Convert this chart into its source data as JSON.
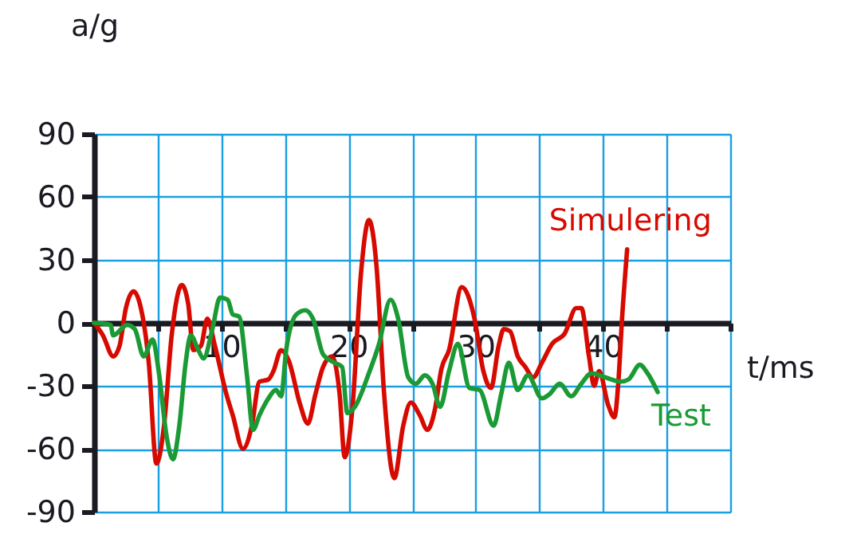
{
  "chart_data": {
    "type": "line",
    "xlabel": "t/ms",
    "ylabel": "a/g",
    "xlim": [
      0,
      50
    ],
    "ylim": [
      -90,
      90
    ],
    "xticks": [
      {
        "value": 0,
        "label": null
      },
      {
        "value": 5,
        "label": null
      },
      10,
      {
        "value": 15,
        "label": null
      },
      20,
      {
        "value": 25,
        "label": null
      },
      30,
      {
        "value": 35,
        "label": null
      },
      40,
      {
        "value": 45,
        "label": null
      },
      {
        "value": 50,
        "label": null
      }
    ],
    "yticks": [
      -90,
      -60,
      -30,
      0,
      30,
      60,
      90
    ],
    "grid": true,
    "line_style": "solid",
    "marker": "none",
    "series": [
      {
        "name": "Simulering",
        "color": "#d60a00",
        "x": [
          0,
          0.7,
          1.5,
          2,
          2.5,
          3.1,
          3.6,
          4.3,
          4.9,
          5.5,
          6.1,
          6.9,
          7.4,
          7.8,
          8.4,
          8.9,
          9.5,
          10.4,
          10.9,
          11.7,
          12.4,
          13,
          13.7,
          14.1,
          14.7,
          15.3,
          16.2,
          16.8,
          17.4,
          18,
          18.7,
          19.3,
          19.7,
          20.3,
          21,
          21.6,
          22.2,
          22.8,
          23.6,
          24.3,
          24.9,
          25.6,
          26.2,
          26.8,
          27.3,
          27.9,
          28.9,
          29.9,
          30.6,
          31.2,
          31.8,
          32.2,
          32.7,
          33.3,
          33.9,
          34.5,
          35.2,
          36,
          37,
          37.9,
          38.3,
          38.9,
          39.3,
          39.7,
          40.4,
          40.9,
          41.2,
          41.5,
          41.9
        ],
        "values": [
          0,
          -6,
          -16,
          -11,
          7,
          15,
          9,
          -19,
          -67,
          -49,
          -6,
          18,
          9,
          -13,
          -11,
          2,
          -11,
          -34,
          -44,
          -60,
          -49,
          -28,
          -27,
          -23,
          -13,
          -18,
          -39,
          -48,
          -34,
          -21,
          -16,
          -34,
          -64,
          -41,
          25,
          49,
          27,
          -34,
          -74,
          -49,
          -38,
          -44,
          -51,
          -41,
          -22,
          -13,
          17,
          2,
          -23,
          -31,
          -11,
          -3,
          -4,
          -16,
          -21,
          -26,
          -19,
          -10,
          -5,
          7,
          7,
          -16,
          -30,
          -23,
          -39,
          -45,
          -29,
          2,
          35
        ]
      },
      {
        "name": "Test",
        "color": "#1a9a35",
        "x": [
          0,
          1.3,
          1.5,
          2.6,
          3.2,
          3.9,
          4.6,
          5.1,
          5.7,
          6.2,
          6.7,
          7.2,
          7.6,
          8.2,
          8.6,
          9.3,
          9.9,
          10.5,
          10.9,
          11.4,
          12,
          12.5,
          13,
          13.7,
          14.3,
          14.7,
          15.1,
          15.9,
          16.6,
          17.2,
          18,
          18.9,
          19.5,
          19.9,
          20.5,
          21.6,
          22.4,
          23.3,
          23.9,
          24.7,
          25.3,
          26,
          26.6,
          27.2,
          27.9,
          28.6,
          29.5,
          30.3,
          31.4,
          32,
          32.6,
          33.3,
          34.1,
          35.2,
          35.8,
          36.6,
          37.5,
          38.3,
          39.1,
          40.2,
          41.4,
          42,
          42.9,
          43.5,
          44.3
        ],
        "values": [
          0,
          -1,
          -6,
          -1,
          -3,
          -16,
          -8,
          -24,
          -54,
          -65,
          -49,
          -19,
          -6,
          -13,
          -17,
          -3,
          12,
          11,
          4,
          3,
          -24,
          -51,
          -44,
          -36,
          -32,
          -35,
          -13,
          4,
          6,
          2,
          -15,
          -19,
          -21,
          -43,
          -40,
          -24,
          -10,
          11,
          2,
          -26,
          -29,
          -25,
          -29,
          -40,
          -23,
          -10,
          -31,
          -32,
          -49,
          -34,
          -19,
          -32,
          -25,
          -36,
          -34,
          -29,
          -35,
          -29,
          -24,
          -26,
          -28,
          -27,
          -20,
          -24,
          -33
        ]
      }
    ]
  }
}
